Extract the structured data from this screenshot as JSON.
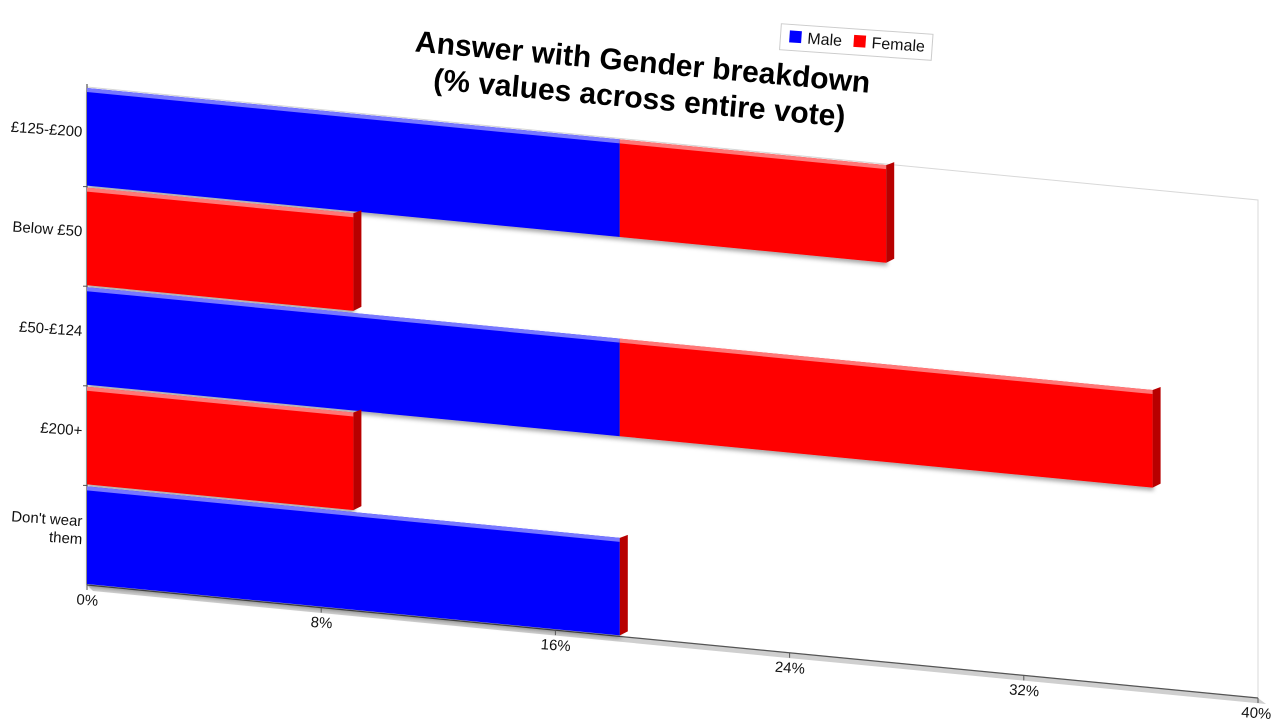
{
  "chart_data": {
    "type": "bar",
    "orientation": "horizontal",
    "stacked": true,
    "title_lines": [
      "Answer with Gender breakdown",
      "(% values across entire vote)"
    ],
    "categories": [
      "£125-£200",
      "Below £50",
      "£50-£124",
      "£200+",
      "Don't wear them"
    ],
    "category_label_lines": [
      [
        "£125-£200"
      ],
      [
        "Below £50"
      ],
      [
        "£50-£124"
      ],
      [
        "£200+"
      ],
      [
        "Don't wear",
        "them"
      ]
    ],
    "series": [
      {
        "name": "Male",
        "color": "#0000ff",
        "values": [
          18.2,
          0,
          18.2,
          0,
          18.2
        ]
      },
      {
        "name": "Female",
        "color": "#ff0000",
        "values": [
          9.1,
          9.1,
          18.2,
          9.1,
          0
        ]
      }
    ],
    "xlim": [
      0,
      40
    ],
    "xticks": [
      "0%",
      "8%",
      "16%",
      "24%",
      "32%",
      "40%"
    ],
    "legend_position": "top-center",
    "grid": false
  }
}
